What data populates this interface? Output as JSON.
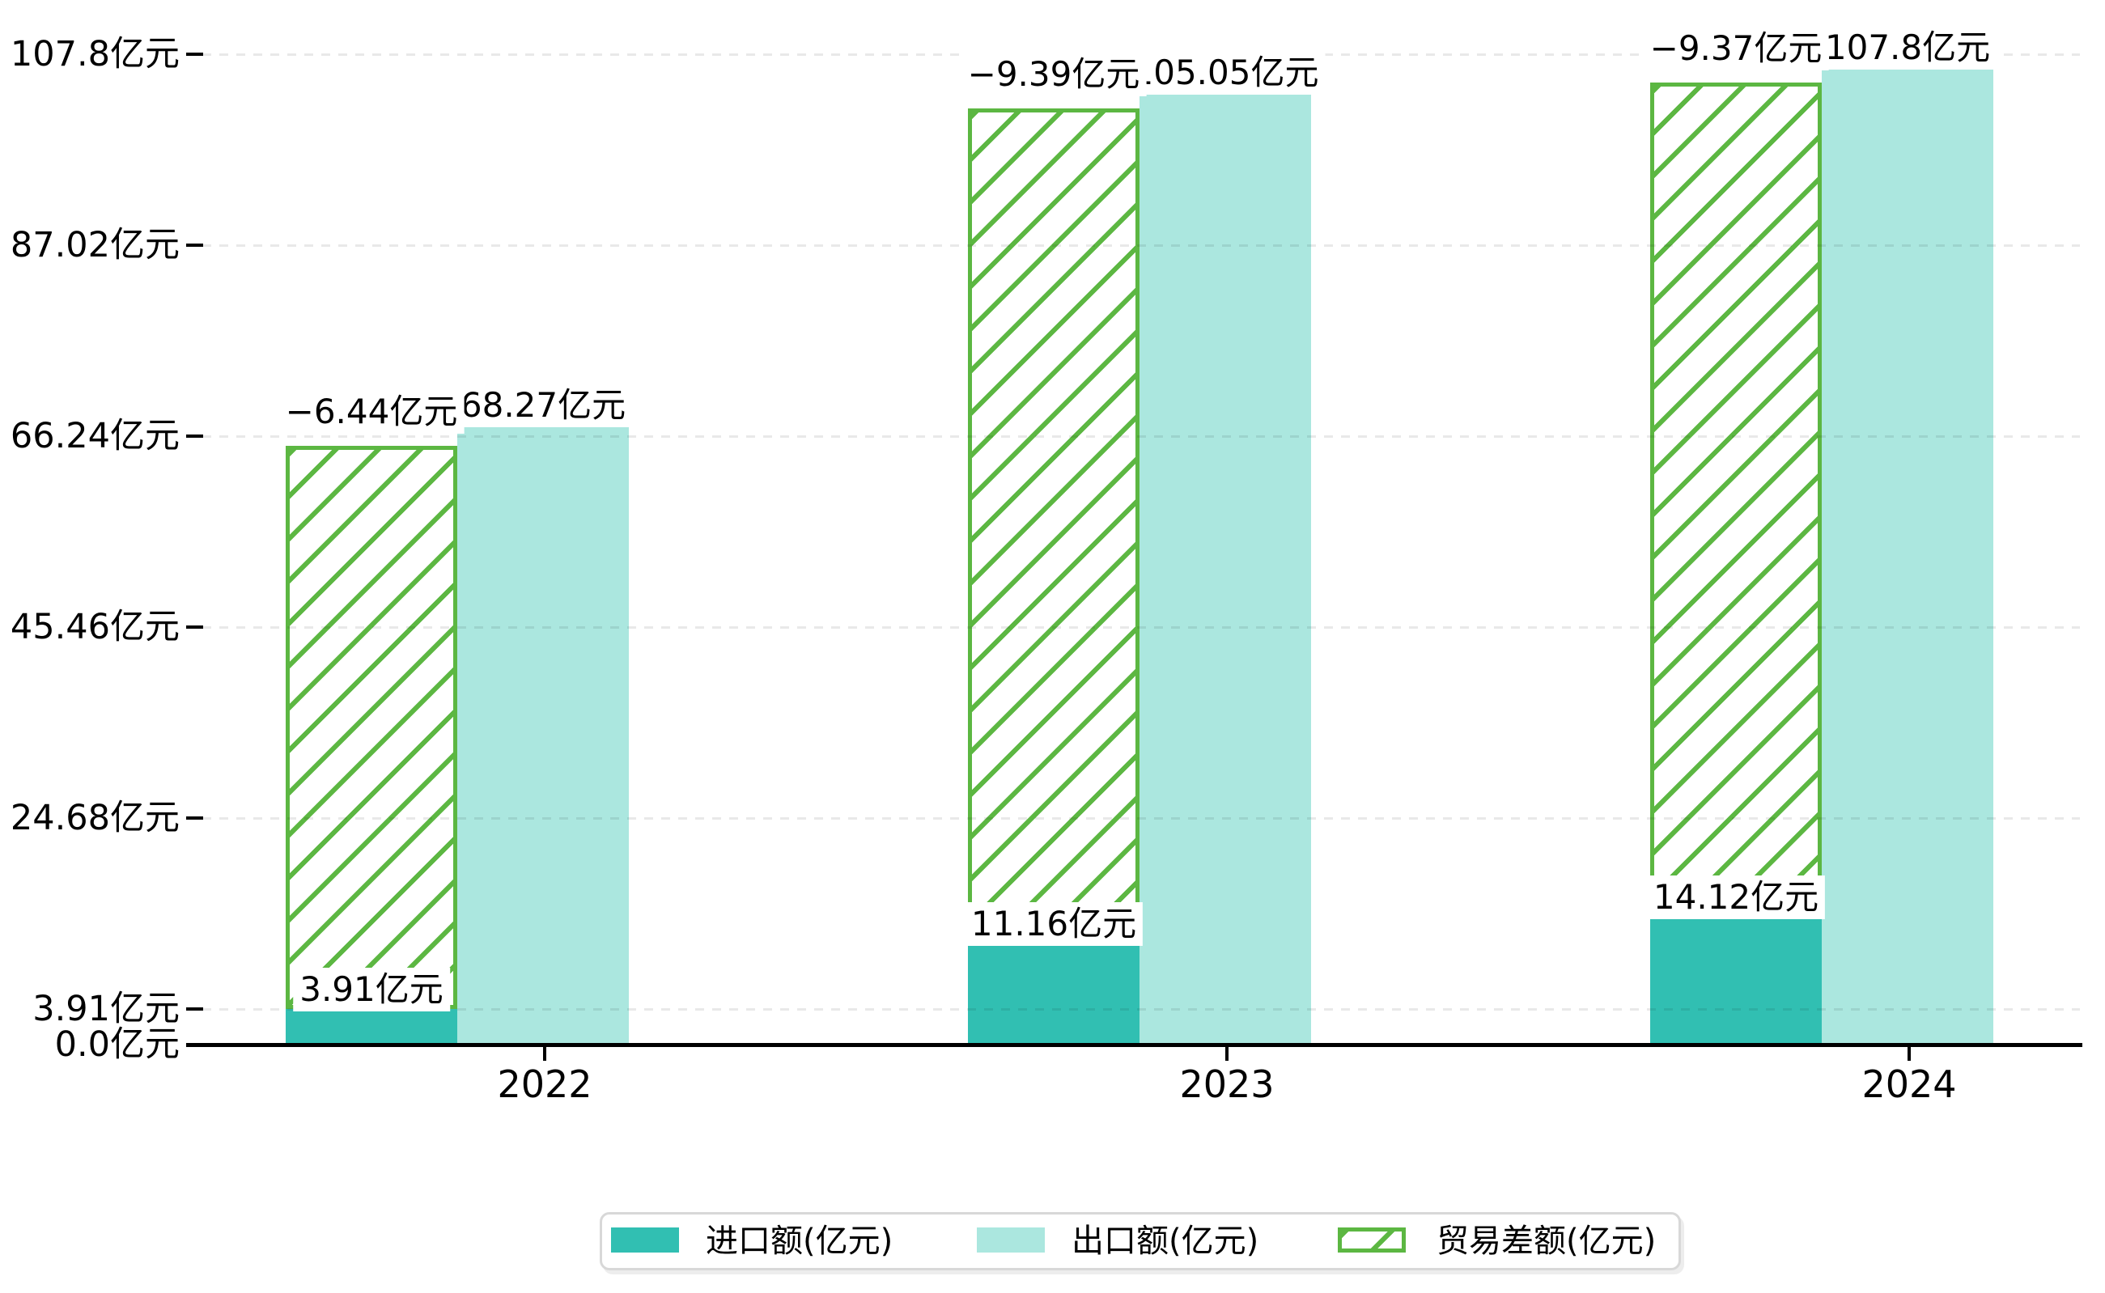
{
  "chart_data": {
    "type": "bar",
    "title": "",
    "categories": [
      "2022",
      "2023",
      "2024"
    ],
    "series": [
      {
        "name": "进口额(亿元)",
        "values": [
          3.91,
          11.16,
          14.12
        ],
        "data_labels": [
          "3.91亿元",
          "11.16亿元",
          "14.12亿元"
        ],
        "color": "#31bfb2",
        "pattern": "solid"
      },
      {
        "name": "出口额(亿元)",
        "values": [
          68.27,
          105.05,
          107.8
        ],
        "data_labels": [
          "68.27亿元",
          "105.05亿元",
          "107.8亿元"
        ],
        "color": "#abe7df",
        "pattern": "solid"
      },
      {
        "name": "贸易差额(亿元)",
        "values": [
          -6.44,
          -9.39,
          -9.37
        ],
        "data_labels": [
          "−6.44亿元",
          "−9.39亿元",
          "−9.37亿元"
        ],
        "color": "#5cb742",
        "pattern": "diagonal-hatch"
      }
    ],
    "y_axis": {
      "unit": "亿元",
      "range": [
        0,
        107.8
      ],
      "gridlines": "dashed",
      "ticks": [
        {
          "value": 0.0,
          "label": "0.0亿元"
        },
        {
          "value": 3.91,
          "label": "3.91亿元"
        },
        {
          "value": 24.68,
          "label": "24.68亿元"
        },
        {
          "value": 45.46,
          "label": "45.46亿元"
        },
        {
          "value": 66.24,
          "label": "66.24亿元"
        },
        {
          "value": 87.02,
          "label": "87.02亿元"
        },
        {
          "value": 107.8,
          "label": "107.8亿元"
        }
      ]
    },
    "x_axis": {
      "labels": [
        "2022",
        "2023",
        "2024"
      ]
    },
    "legend": {
      "position": "bottom",
      "items": [
        {
          "label": "进口额(亿元)",
          "swatch": "solid",
          "color": "#31bfb2"
        },
        {
          "label": "出口额(亿元)",
          "swatch": "solid",
          "color": "#abe7df"
        },
        {
          "label": "贸易差额(亿元)",
          "swatch": "hatched",
          "color": "#5cb742"
        }
      ]
    },
    "colors": {
      "grid": "#e9e9e9",
      "axis": "#000000",
      "legend_border": "#d8d8d8",
      "background": "#ffffff"
    }
  }
}
